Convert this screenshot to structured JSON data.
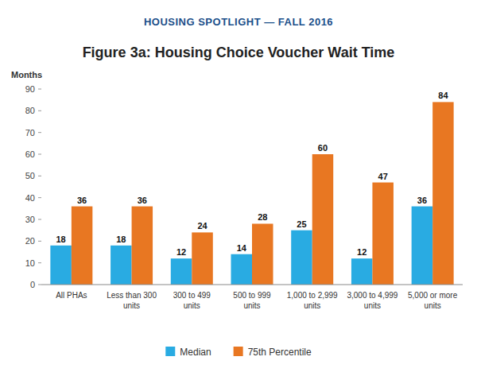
{
  "chart_data": {
    "type": "bar",
    "title": "Figure 3a: Housing Choice Voucher Wait Time",
    "subtitle": "HOUSING SPOTLIGHT — FALL 2016",
    "y_label": "Months",
    "categories": [
      "All PHAs",
      "Less than 300\nunits",
      "300 to 499\nunits",
      "500 to 999\nunits",
      "1,000 to 2,999\nunits",
      "3,000 to 4,999\nunits",
      "5,000 or more\nunits"
    ],
    "series": [
      {
        "name": "Median",
        "color": "#29ABE2",
        "values": [
          18,
          18,
          12,
          14,
          25,
          12,
          36
        ]
      },
      {
        "name": "75th Percentile",
        "color": "#E87722",
        "values": [
          36,
          36,
          24,
          28,
          60,
          47,
          84
        ]
      }
    ],
    "ylim": [
      0,
      90
    ],
    "yticks": [
      0,
      10,
      20,
      30,
      40,
      50,
      60,
      70,
      80,
      90
    ],
    "grid": false,
    "legend": "bottom",
    "data_labels": true
  }
}
